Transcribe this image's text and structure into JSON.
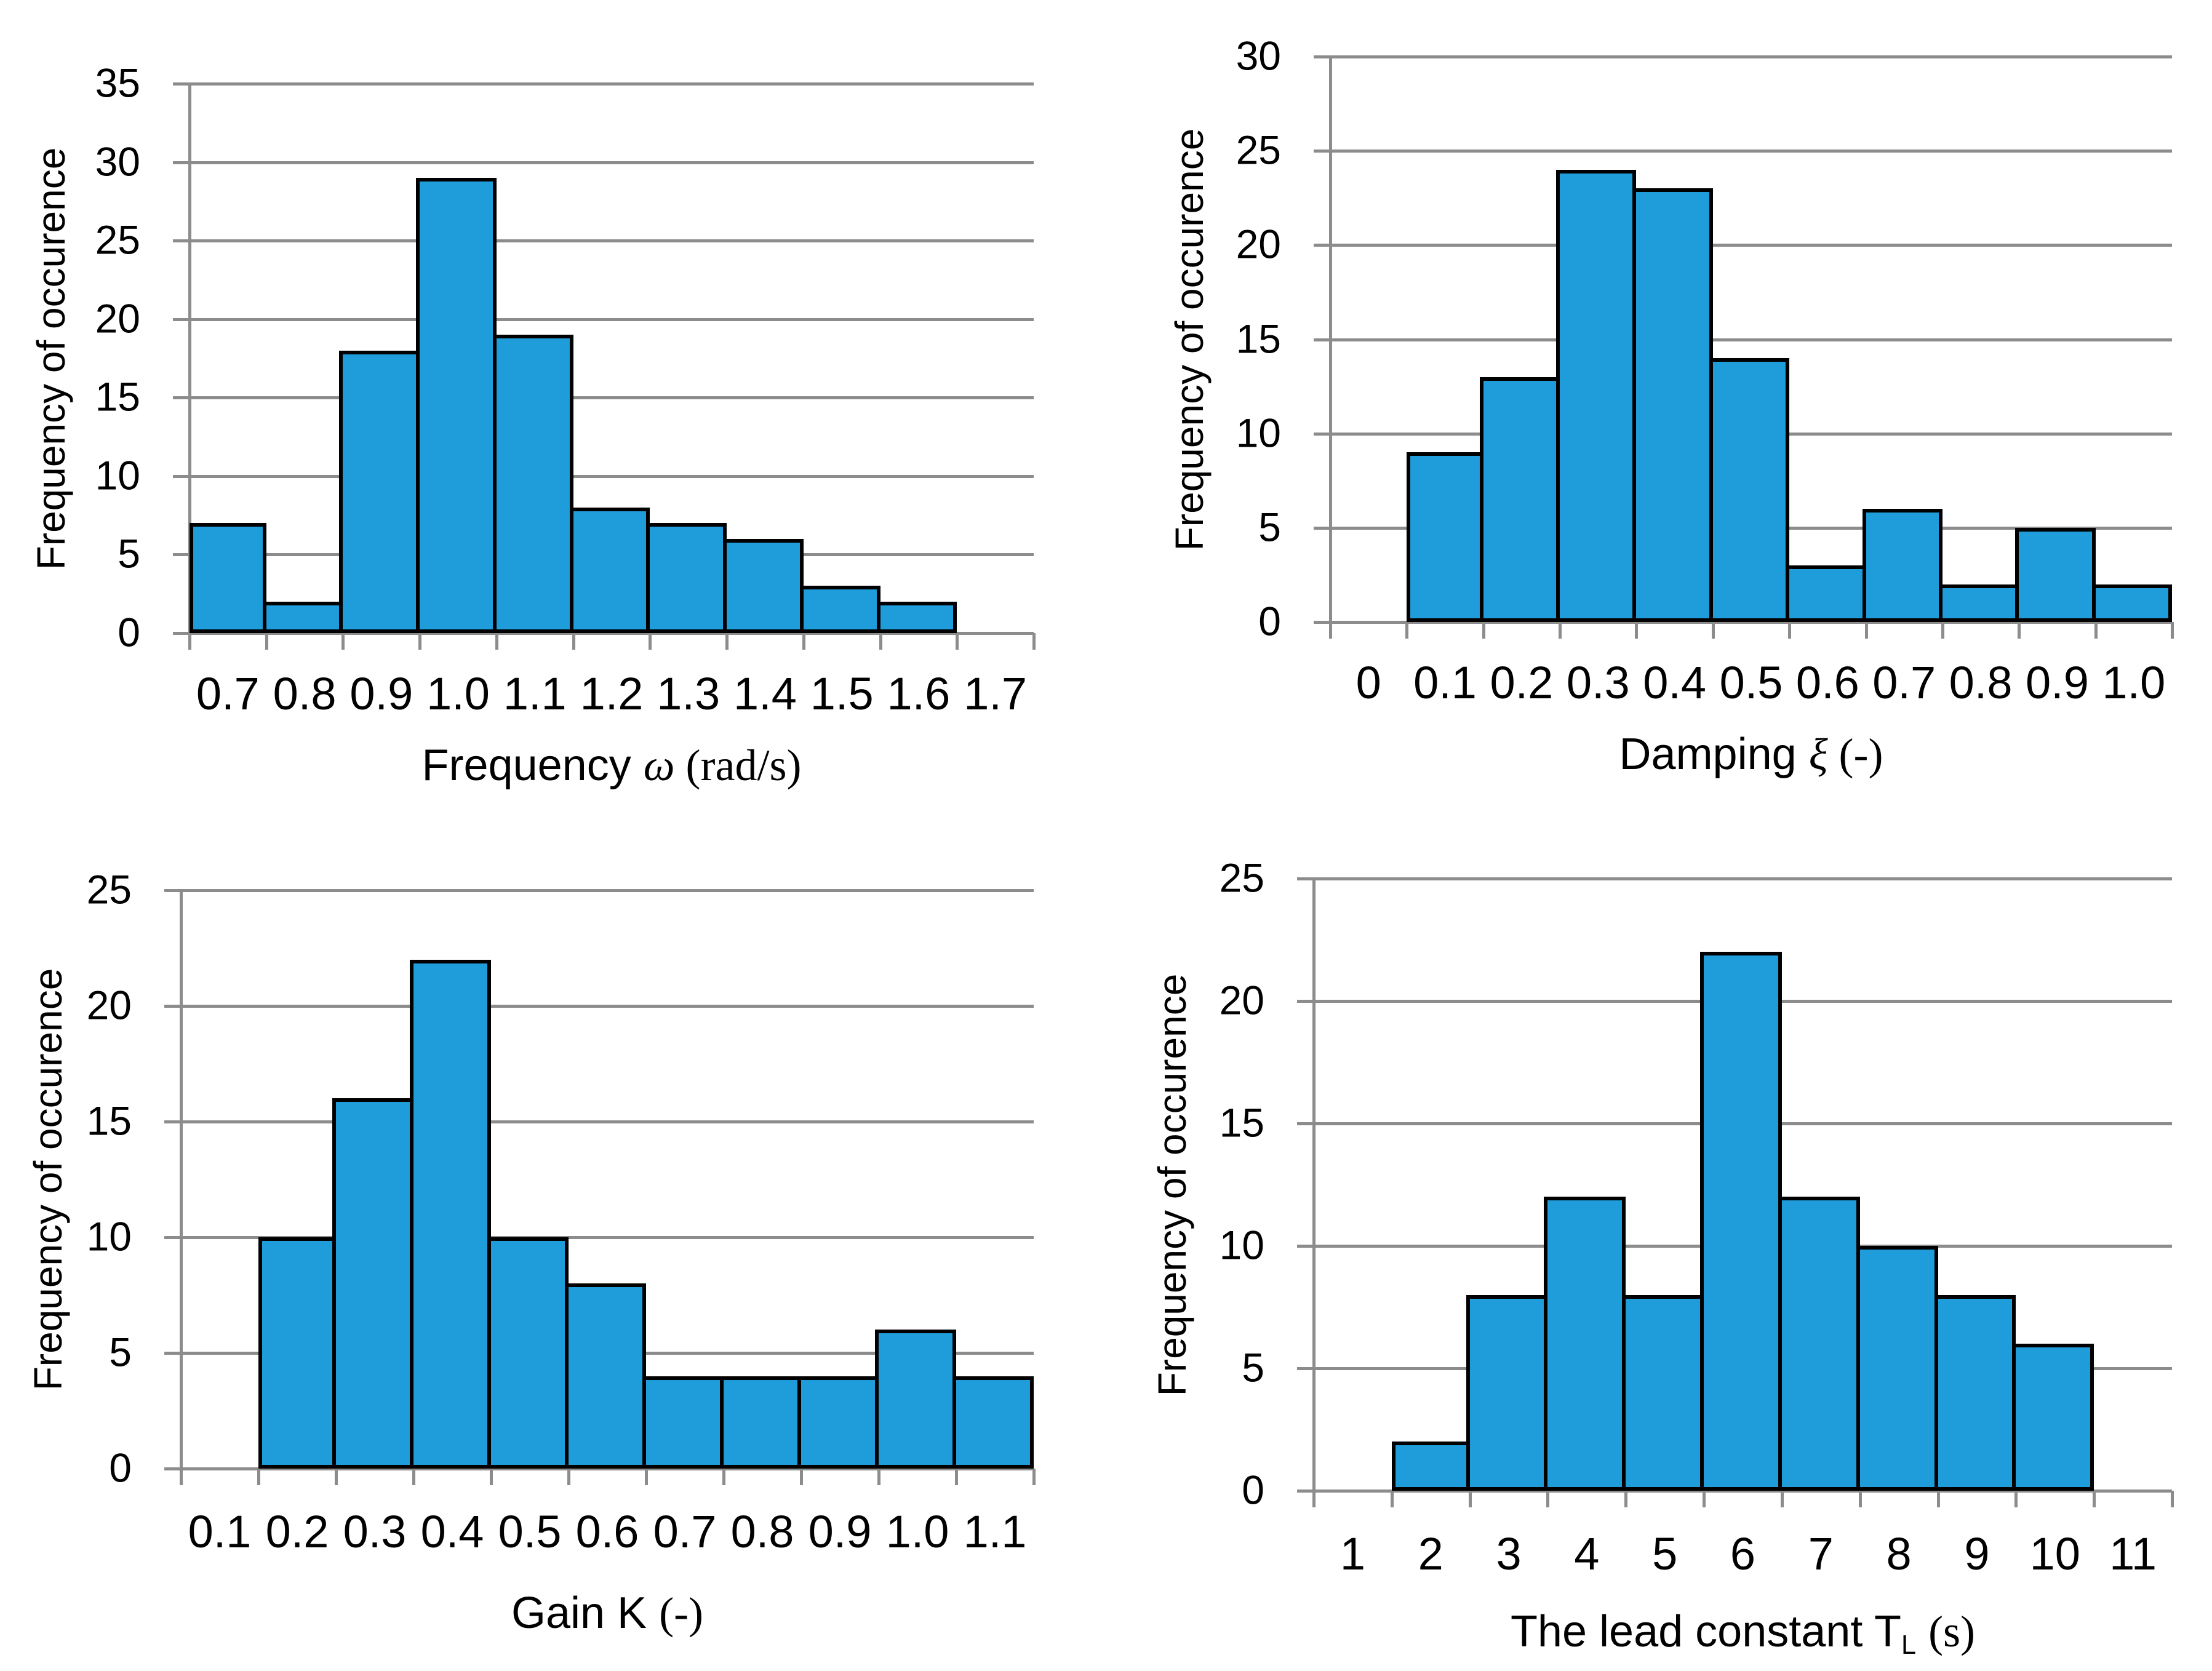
{
  "figure": {
    "background": "#FFFFFF",
    "description": "Four histograms of identified model parameters"
  },
  "colors": {
    "bar_fill": "#1F9CDA",
    "bar_border": "#000000",
    "grid": "#8C8C8C",
    "text": "#000000"
  },
  "chart_data": [
    {
      "type": "bar",
      "ylabel": "Frequency of occurence",
      "xlabel": "Frequency ω (rad/s)",
      "xlabel_segments": [
        {
          "t": "Frequency ",
          "f": "sans"
        },
        {
          "t": "ω",
          "f": "serif-italic"
        },
        {
          "t": " (rad/s)",
          "f": "serif"
        }
      ],
      "categories": [
        "0.7",
        "0.8",
        "0.9",
        "1.0",
        "1.1",
        "1.2",
        "1.3",
        "1.4",
        "1.5",
        "1.6",
        "1.7"
      ],
      "values": [
        7,
        2,
        18,
        29,
        19,
        8,
        7,
        6,
        3,
        2,
        0
      ],
      "yticks": [
        "0",
        "5",
        "10",
        "15",
        "20",
        "25",
        "30",
        "35"
      ],
      "ylim": [
        0,
        35
      ],
      "ytick_step": 5,
      "grid": true,
      "legend": false
    },
    {
      "type": "bar",
      "ylabel": "Frequency of occurence",
      "xlabel": "Damping ξ (-)",
      "xlabel_segments": [
        {
          "t": "Damping ",
          "f": "sans"
        },
        {
          "t": "ξ",
          "f": "serif-italic"
        },
        {
          "t": " (-)",
          "f": "serif"
        }
      ],
      "categories": [
        "0",
        "0.1",
        "0.2",
        "0.3",
        "0.4",
        "0.5",
        "0.6",
        "0.7",
        "0.8",
        "0.9",
        "1.0"
      ],
      "values": [
        0,
        9,
        13,
        24,
        23,
        14,
        3,
        6,
        2,
        5,
        2
      ],
      "yticks": [
        "0",
        "5",
        "10",
        "15",
        "20",
        "25",
        "30"
      ],
      "ylim": [
        0,
        30
      ],
      "ytick_step": 5,
      "grid": true,
      "legend": false
    },
    {
      "type": "bar",
      "ylabel": "Frequency of occurence",
      "xlabel": "Gain K (-)",
      "xlabel_segments": [
        {
          "t": "Gain K ",
          "f": "sans"
        },
        {
          "t": "(-)",
          "f": "serif"
        }
      ],
      "categories": [
        "0.1",
        "0.2",
        "0.3",
        "0.4",
        "0.5",
        "0.6",
        "0.7",
        "0.8",
        "0.9",
        "1.0",
        "1.1"
      ],
      "values": [
        0,
        10,
        16,
        22,
        10,
        8,
        4,
        4,
        4,
        6,
        4
      ],
      "yticks": [
        "0",
        "5",
        "10",
        "15",
        "20",
        "25"
      ],
      "ylim": [
        0,
        25
      ],
      "ytick_step": 5,
      "grid": true,
      "legend": false
    },
    {
      "type": "bar",
      "ylabel": "Frequency of occurence",
      "xlabel": "The lead constant TL (s)",
      "xlabel_segments": [
        {
          "t": "The lead constant T",
          "f": "sans"
        },
        {
          "t": "L",
          "f": "sub"
        },
        {
          "t": " ",
          "f": "sans"
        },
        {
          "t": "(s)",
          "f": "serif"
        }
      ],
      "categories": [
        "1",
        "2",
        "3",
        "4",
        "5",
        "6",
        "7",
        "8",
        "9",
        "10",
        "11"
      ],
      "values": [
        0,
        2,
        8,
        12,
        8,
        22,
        12,
        10,
        8,
        6,
        0
      ],
      "yticks": [
        "0",
        "5",
        "10",
        "15",
        "20",
        "25"
      ],
      "ylim": [
        0,
        25
      ],
      "ytick_step": 5,
      "grid": true,
      "legend": false
    }
  ]
}
